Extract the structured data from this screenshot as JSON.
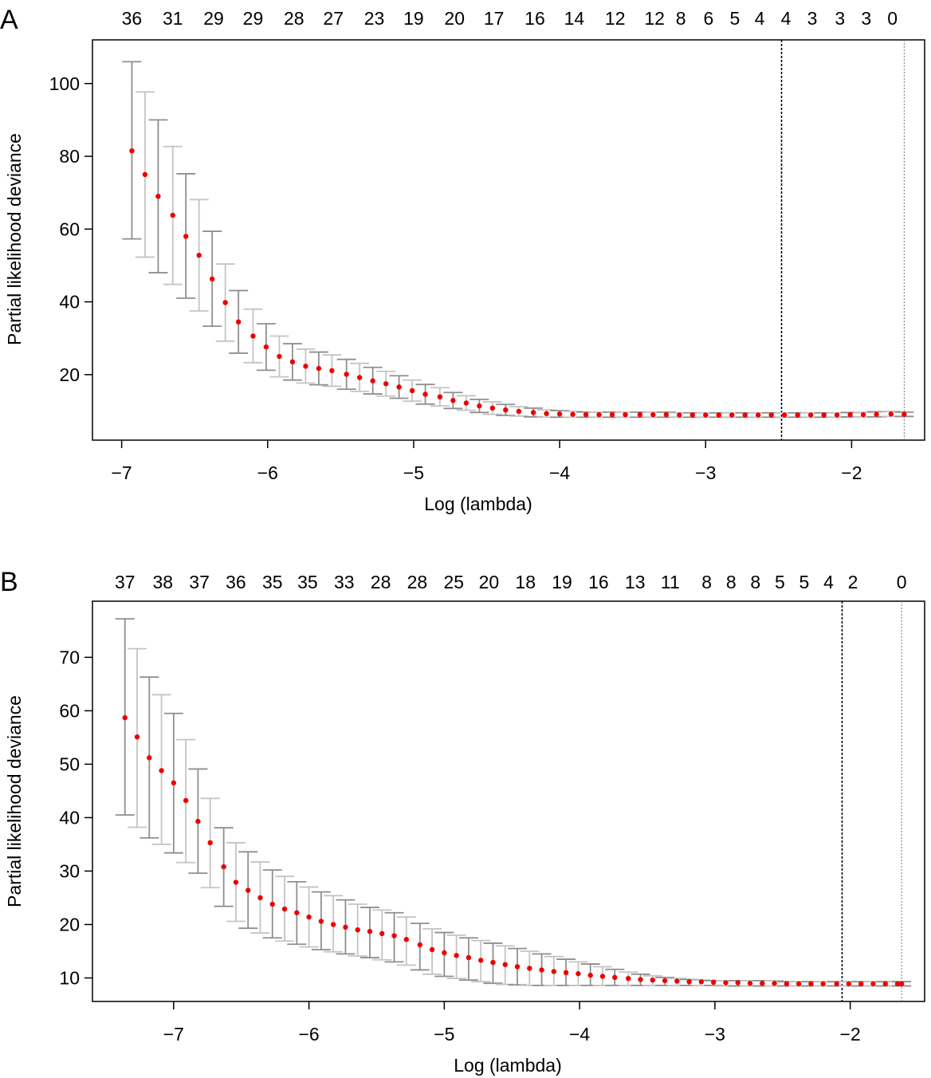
{
  "colors": {
    "point": "#ee0000",
    "errorbar": "#a0a0a0",
    "axis": "#000000",
    "vline_min": "#000000",
    "vline_1se": "#777777"
  },
  "chart_data": [
    {
      "panel_label": "A",
      "type": "scatter",
      "title": "",
      "xlabel": "Log (lambda)",
      "ylabel": "Partial likelihood deviance",
      "xlim": [
        -7.2,
        -1.5
      ],
      "ylim": [
        2,
        112
      ],
      "xticks": [
        -7,
        -6,
        -5,
        -4,
        -3,
        -2
      ],
      "xtick_labels": [
        "−7",
        "−6",
        "−5",
        "−4",
        "−3",
        "−2"
      ],
      "yticks": [
        20,
        40,
        60,
        80,
        100
      ],
      "ytick_labels": [
        "20",
        "40",
        "60",
        "80",
        "100"
      ],
      "top_axis_labels": [
        "36",
        "31",
        "29",
        "29",
        "28",
        "27",
        "23",
        "19",
        "20",
        "17",
        "16",
        "14",
        "12",
        "12",
        "8",
        "6",
        "5",
        "4",
        "4",
        "3",
        "3",
        "3",
        "0"
      ],
      "top_axis_x": [
        -6.93,
        -6.65,
        -6.37,
        -6.1,
        -5.82,
        -5.55,
        -5.27,
        -5.0,
        -4.72,
        -4.45,
        -4.17,
        -3.9,
        -3.62,
        -3.35,
        -3.17,
        -2.98,
        -2.8,
        -2.63,
        -2.45,
        -2.27,
        -2.08,
        -1.9,
        -1.72
      ],
      "vlines": [
        -2.48,
        -1.64
      ],
      "series": [
        {
          "x": [
            -6.93,
            -6.84,
            -6.75,
            -6.65,
            -6.56,
            -6.47,
            -6.38,
            -6.29,
            -6.2,
            -6.1,
            -6.01,
            -5.92,
            -5.83,
            -5.74,
            -5.65,
            -5.56,
            -5.46,
            -5.37,
            -5.28,
            -5.19,
            -5.1,
            -5.01,
            -4.92,
            -4.82,
            -4.73,
            -4.64,
            -4.55,
            -4.46,
            -4.37,
            -4.28,
            -4.18,
            -4.09,
            -4.0,
            -3.91,
            -3.82,
            -3.73,
            -3.64,
            -3.55,
            -3.45,
            -3.36,
            -3.27,
            -3.18,
            -3.09,
            -3.0,
            -2.91,
            -2.82,
            -2.73,
            -2.64,
            -2.55,
            -2.46,
            -2.37,
            -2.28,
            -2.19,
            -2.1,
            -2.01,
            -1.92,
            -1.83,
            -1.73,
            -1.64
          ],
          "y": [
            81.5,
            75.0,
            69.0,
            63.8,
            58.0,
            52.8,
            46.3,
            39.8,
            34.5,
            30.6,
            27.6,
            25.0,
            23.5,
            22.3,
            21.7,
            21.1,
            20.1,
            19.2,
            18.3,
            17.5,
            16.6,
            15.6,
            14.6,
            13.9,
            12.9,
            12.2,
            11.4,
            10.8,
            10.3,
            9.9,
            9.6,
            9.3,
            9.2,
            9.1,
            9.0,
            9.0,
            9.0,
            9.0,
            9.0,
            9.0,
            9.0,
            8.9,
            8.9,
            8.9,
            8.9,
            8.9,
            8.9,
            8.9,
            8.9,
            8.9,
            8.9,
            8.9,
            8.9,
            8.9,
            9.0,
            9.0,
            9.1,
            9.2,
            9.1
          ],
          "lower": [
            57.3,
            52.3,
            48.0,
            44.8,
            41.0,
            37.5,
            33.3,
            29.2,
            25.9,
            23.3,
            21.2,
            19.4,
            18.5,
            17.7,
            17.2,
            16.8,
            16.0,
            15.4,
            14.7,
            14.1,
            13.5,
            12.7,
            11.9,
            11.4,
            10.7,
            10.2,
            9.6,
            9.1,
            8.8,
            8.6,
            8.4,
            8.3,
            8.3,
            8.3,
            8.3,
            8.3,
            8.3,
            8.3,
            8.3,
            8.3,
            8.3,
            8.3,
            8.3,
            8.3,
            8.3,
            8.3,
            8.3,
            8.3,
            8.3,
            8.3,
            8.3,
            8.3,
            8.3,
            8.3,
            8.4,
            8.4,
            8.4,
            8.5,
            8.5
          ],
          "upper": [
            106.0,
            97.7,
            90.0,
            82.7,
            75.2,
            68.1,
            59.4,
            50.4,
            43.1,
            38.0,
            34.0,
            30.6,
            28.5,
            27.0,
            26.2,
            25.4,
            24.2,
            23.1,
            22.0,
            20.9,
            19.7,
            18.5,
            17.3,
            16.4,
            15.1,
            14.2,
            13.2,
            12.5,
            11.8,
            11.2,
            10.8,
            10.3,
            10.1,
            9.9,
            9.7,
            9.7,
            9.7,
            9.7,
            9.7,
            9.7,
            9.7,
            9.5,
            9.5,
            9.5,
            9.5,
            9.5,
            9.5,
            9.5,
            9.5,
            9.5,
            9.5,
            9.5,
            9.5,
            9.5,
            9.6,
            9.6,
            9.8,
            9.9,
            9.7
          ]
        }
      ]
    },
    {
      "panel_label": "B",
      "type": "scatter",
      "title": "",
      "xlabel": "Log (lambda)",
      "ylabel": "Partial likelihood deviance",
      "xlim": [
        -7.6,
        -1.45
      ],
      "ylim": [
        5.6,
        80.5
      ],
      "xticks": [
        -7,
        -6,
        -5,
        -4,
        -3,
        -2
      ],
      "xtick_labels": [
        "−7",
        "−6",
        "−5",
        "−4",
        "−3",
        "−2"
      ],
      "yticks": [
        10,
        20,
        30,
        40,
        50,
        60,
        70
      ],
      "ytick_labels": [
        "10",
        "20",
        "30",
        "40",
        "50",
        "60",
        "70"
      ],
      "top_axis_labels": [
        "37",
        "38",
        "37",
        "36",
        "35",
        "35",
        "33",
        "28",
        "28",
        "25",
        "20",
        "18",
        "19",
        "16",
        "13",
        "11",
        "8",
        "8",
        "8",
        "5",
        "5",
        "4",
        "2",
        "0"
      ],
      "top_axis_x": [
        -7.36,
        -7.08,
        -6.81,
        -6.54,
        -6.27,
        -6.01,
        -5.74,
        -5.47,
        -5.2,
        -4.93,
        -4.67,
        -4.4,
        -4.13,
        -3.86,
        -3.59,
        -3.33,
        -3.06,
        -2.88,
        -2.7,
        -2.52,
        -2.34,
        -2.16,
        -1.98,
        -1.62
      ],
      "vlines": [
        -2.06,
        -1.62
      ],
      "series": [
        {
          "x": [
            -7.36,
            -7.27,
            -7.18,
            -7.09,
            -7.0,
            -6.91,
            -6.82,
            -6.73,
            -6.63,
            -6.54,
            -6.45,
            -6.36,
            -6.27,
            -6.18,
            -6.09,
            -6.0,
            -5.91,
            -5.82,
            -5.73,
            -5.64,
            -5.55,
            -5.46,
            -5.37,
            -5.28,
            -5.18,
            -5.09,
            -5.0,
            -4.91,
            -4.82,
            -4.73,
            -4.64,
            -4.55,
            -4.46,
            -4.37,
            -4.28,
            -4.19,
            -4.1,
            -4.01,
            -3.92,
            -3.83,
            -3.74,
            -3.64,
            -3.55,
            -3.46,
            -3.37,
            -3.28,
            -3.19,
            -3.1,
            -3.01,
            -2.92,
            -2.83,
            -2.74,
            -2.65,
            -2.56,
            -2.47,
            -2.38,
            -2.29,
            -2.2,
            -2.1,
            -2.01,
            -1.92,
            -1.83,
            -1.74,
            -1.65,
            -1.62
          ],
          "y": [
            58.7,
            55.1,
            51.2,
            48.8,
            46.5,
            43.2,
            39.3,
            35.3,
            30.8,
            27.9,
            26.4,
            25.0,
            23.8,
            22.9,
            22.2,
            21.4,
            20.6,
            20.0,
            19.5,
            19.0,
            18.7,
            18.3,
            17.9,
            17.2,
            16.2,
            15.3,
            14.7,
            14.2,
            13.8,
            13.3,
            12.9,
            12.5,
            12.1,
            11.8,
            11.5,
            11.2,
            11.0,
            10.8,
            10.5,
            10.3,
            10.1,
            9.9,
            9.7,
            9.6,
            9.5,
            9.4,
            9.3,
            9.3,
            9.2,
            9.1,
            9.1,
            9.0,
            9.0,
            9.0,
            8.9,
            8.9,
            8.9,
            8.9,
            8.9,
            8.9,
            8.9,
            8.9,
            8.9,
            8.9,
            8.9
          ],
          "lower": [
            40.5,
            38.2,
            36.2,
            35.0,
            33.4,
            31.6,
            29.6,
            26.9,
            23.4,
            20.6,
            19.3,
            18.4,
            17.5,
            16.9,
            16.3,
            15.8,
            15.3,
            14.9,
            14.5,
            14.1,
            13.8,
            13.4,
            13.0,
            12.4,
            11.5,
            10.7,
            10.3,
            9.9,
            9.6,
            9.3,
            9.0,
            8.8,
            8.7,
            8.6,
            8.6,
            8.6,
            8.6,
            8.6,
            8.6,
            8.6,
            8.6,
            8.6,
            8.6,
            8.6,
            8.6,
            8.6,
            8.6,
            8.6,
            8.6,
            8.5,
            8.5,
            8.5,
            8.5,
            8.5,
            8.5,
            8.5,
            8.5,
            8.5,
            8.5,
            8.5,
            8.5,
            8.5,
            8.5,
            8.5,
            8.5
          ],
          "upper": [
            77.2,
            71.6,
            66.3,
            63.0,
            59.5,
            54.6,
            49.1,
            43.6,
            38.1,
            35.3,
            33.6,
            31.7,
            30.2,
            29.0,
            28.0,
            27.0,
            26.1,
            25.4,
            24.6,
            23.8,
            23.2,
            22.7,
            22.2,
            21.4,
            20.2,
            19.2,
            18.5,
            18.0,
            17.5,
            17.0,
            16.5,
            16.0,
            15.5,
            15.0,
            14.5,
            14.0,
            13.5,
            13.0,
            12.6,
            12.1,
            11.6,
            11.1,
            10.7,
            10.4,
            10.1,
            9.9,
            9.7,
            9.6,
            9.5,
            9.5,
            9.5,
            9.5,
            9.5,
            9.5,
            9.3,
            9.3,
            9.3,
            9.3,
            9.3,
            9.3,
            9.3,
            9.3,
            9.3,
            9.3,
            9.3
          ]
        }
      ]
    }
  ]
}
